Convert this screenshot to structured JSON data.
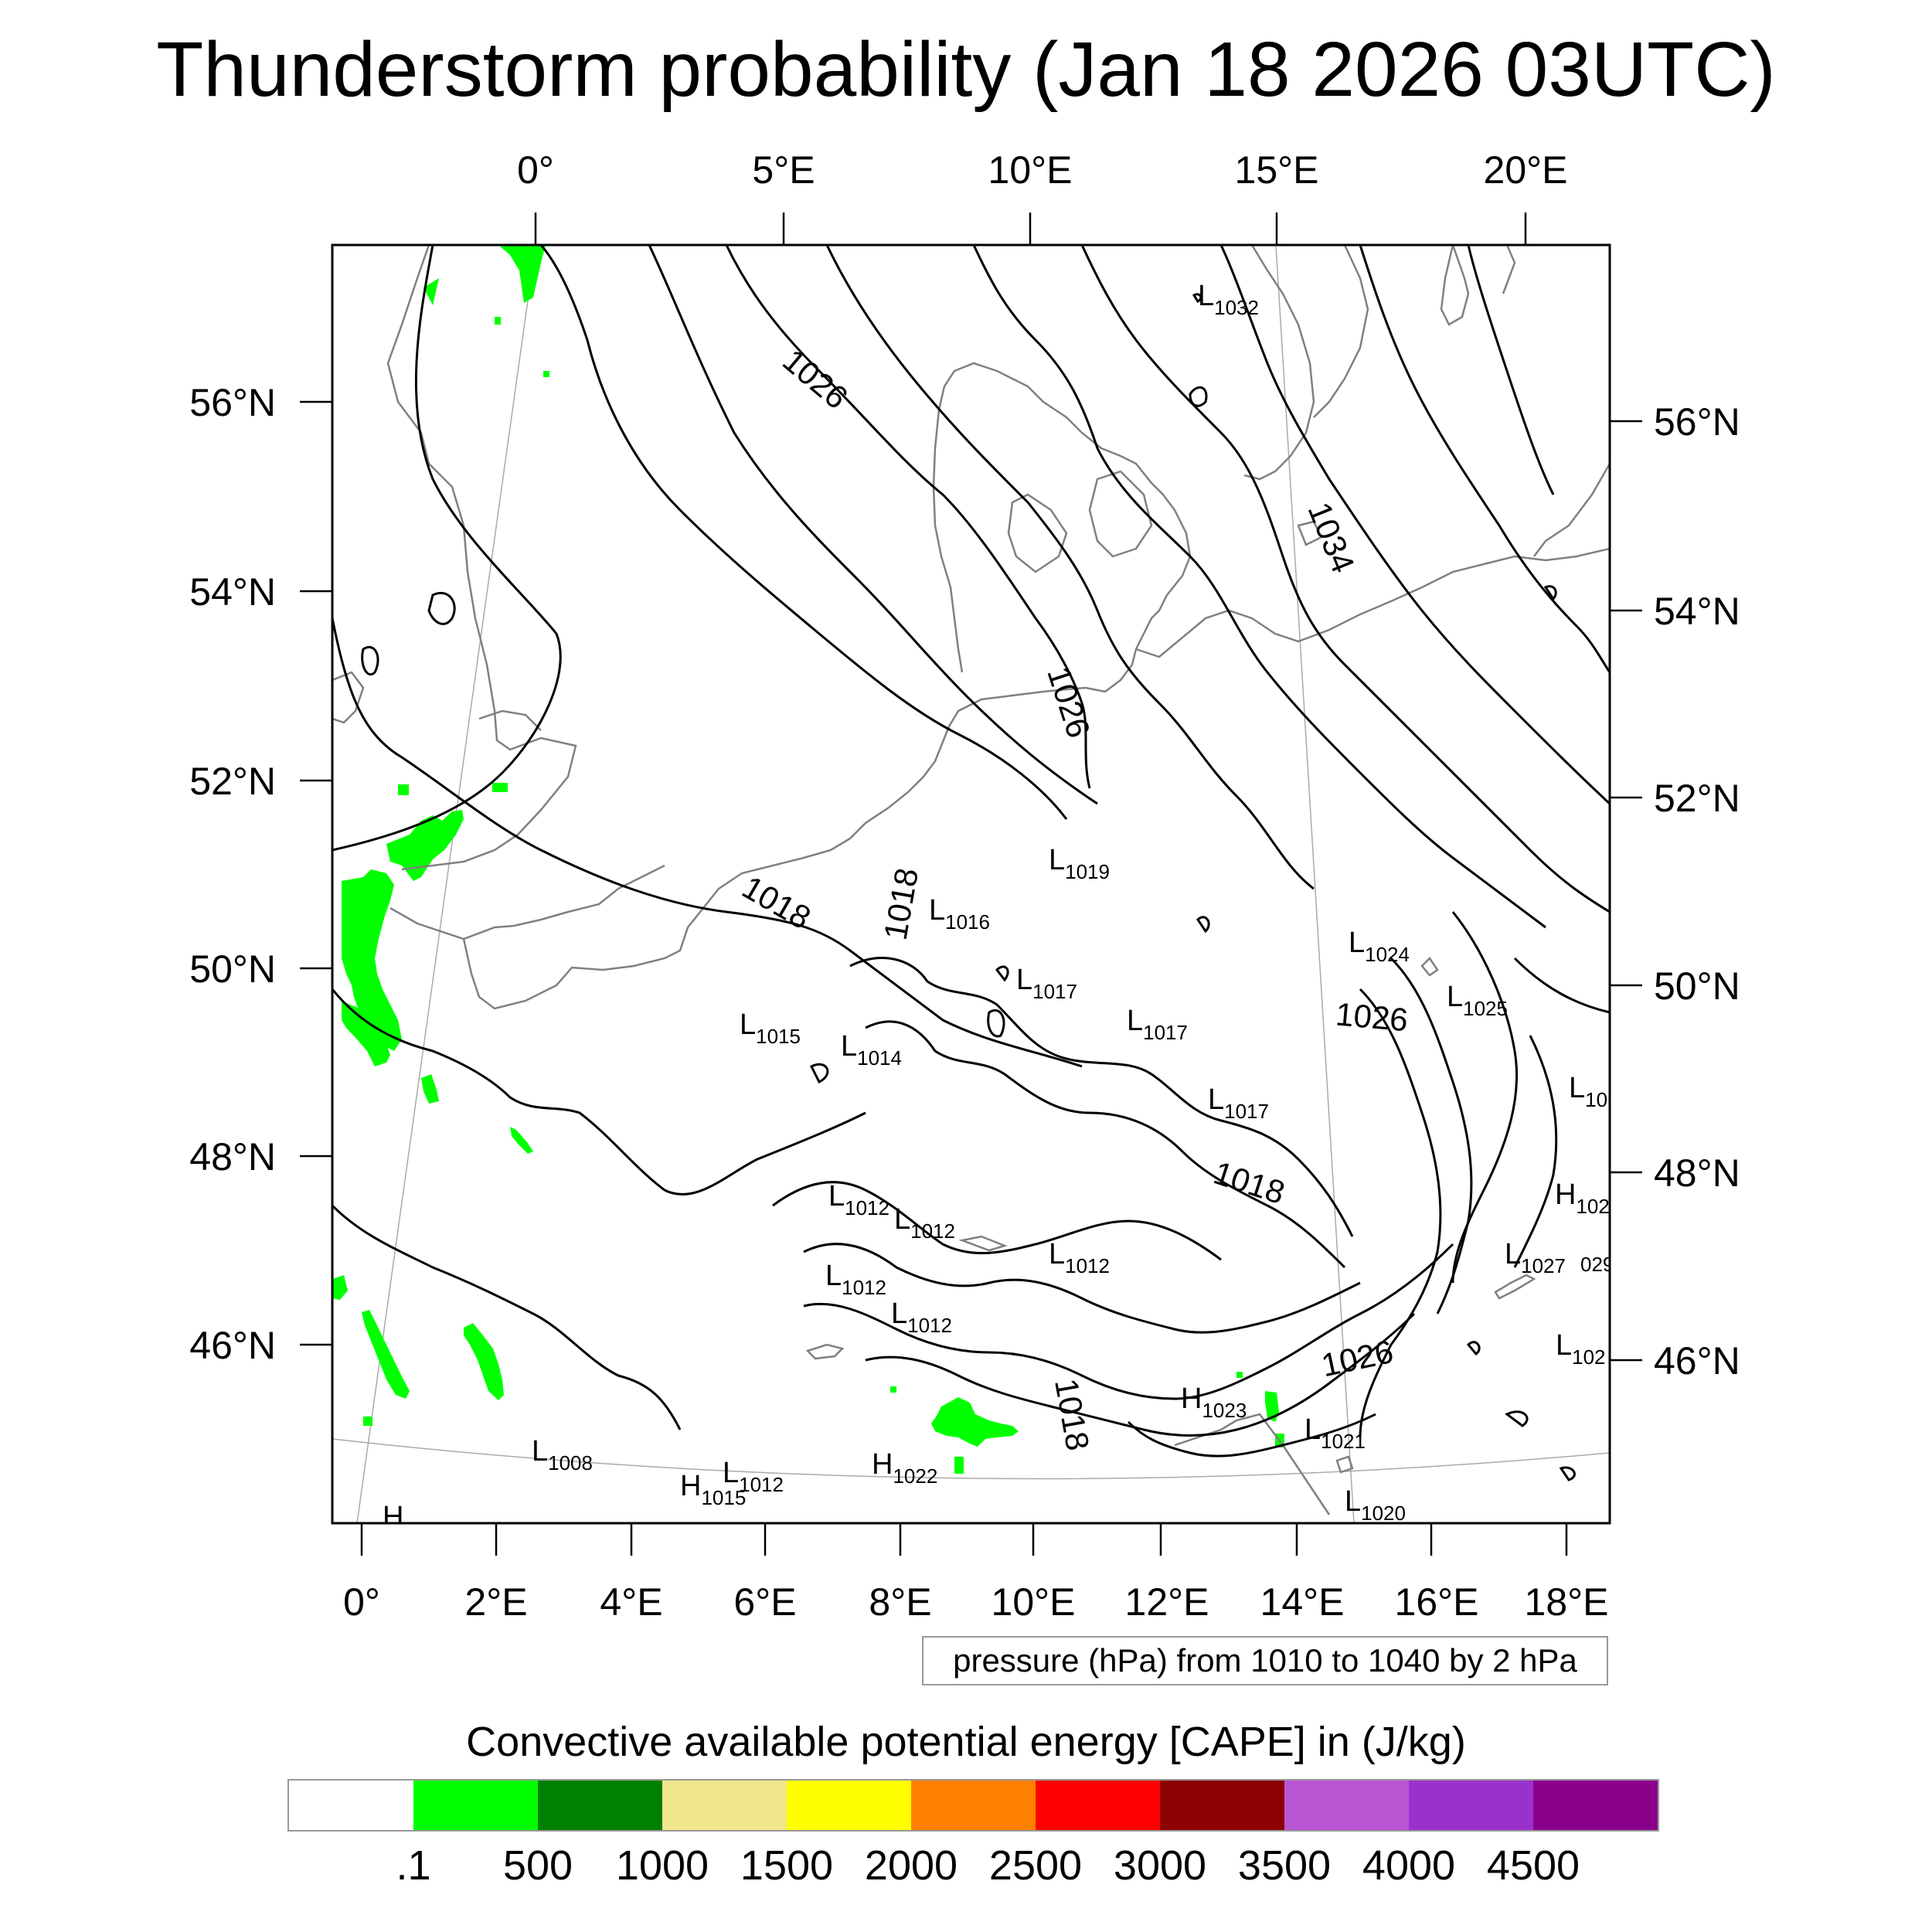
{
  "title": "Thunderstorm probability (Jan 18 2026 03UTC)",
  "map": {
    "top_lon_labels": [
      "0°",
      "5°E",
      "10°E",
      "15°E",
      "20°E"
    ],
    "bottom_lon_labels": [
      "0°",
      "2°E",
      "4°E",
      "6°E",
      "8°E",
      "10°E",
      "12°E",
      "14°E",
      "16°E",
      "18°E"
    ],
    "left_lat_labels": [
      "56°N",
      "54°N",
      "52°N",
      "50°N",
      "48°N",
      "46°N"
    ],
    "right_lat_labels": [
      "56°N",
      "54°N",
      "52°N",
      "50°N",
      "48°N",
      "46°N"
    ],
    "contour_labels": [
      "1026",
      "1034",
      "1026",
      "1018",
      "1018",
      "1026",
      "1018",
      "1026",
      "1018"
    ],
    "pressure_centers": [
      {
        "letter": "L",
        "value": "1032"
      },
      {
        "letter": "L",
        "value": "1019"
      },
      {
        "letter": "L",
        "value": "1016"
      },
      {
        "letter": "L",
        "value": "1024"
      },
      {
        "letter": "L",
        "value": "1017"
      },
      {
        "letter": "L",
        "value": "1025"
      },
      {
        "letter": "L",
        "value": "1015"
      },
      {
        "letter": "L",
        "value": "1017"
      },
      {
        "letter": "L",
        "value": "1014"
      },
      {
        "letter": "L",
        "value": "1017"
      },
      {
        "letter": "L",
        "value": "10"
      },
      {
        "letter": "L",
        "value": "1012"
      },
      {
        "letter": "L",
        "value": "1012"
      },
      {
        "letter": "H",
        "value": "102"
      },
      {
        "letter": "L",
        "value": "1012"
      },
      {
        "letter": "L",
        "value": "1012"
      },
      {
        "letter": "L",
        "value": "1027"
      },
      {
        "letter": "L",
        "value": "1012"
      },
      {
        "letter": "L",
        "value": "102"
      },
      {
        "letter": "H",
        "value": "1023"
      },
      {
        "letter": "L",
        "value": "1021"
      },
      {
        "letter": "L",
        "value": "1008"
      },
      {
        "letter": "H",
        "value": "1022"
      },
      {
        "letter": "L",
        "value": "1012"
      },
      {
        "letter": "H",
        "value": "1015"
      },
      {
        "letter": "L",
        "value": "1020"
      },
      {
        "letter": "H",
        "value": ""
      }
    ],
    "stray_label": "029",
    "cape_color": "#00ff00",
    "contour_color": "#000000",
    "coast_color": "#808080"
  },
  "contour_info": "pressure (hPa) from 1010 to 1040 by 2 hPa",
  "colorbar": {
    "title": "Convective available potential energy [CAPE] in (J/kg)",
    "colors": [
      "#ffffff",
      "#00ff00",
      "#008000",
      "#f0e68c",
      "#ffff00",
      "#ff8000",
      "#ff0000",
      "#8b0000",
      "#ba55d3",
      "#9932cc",
      "#8b008b"
    ],
    "labels": [
      ".1",
      "500",
      "1000",
      "1500",
      "2000",
      "2500",
      "3000",
      "3500",
      "4000",
      "4500"
    ]
  }
}
